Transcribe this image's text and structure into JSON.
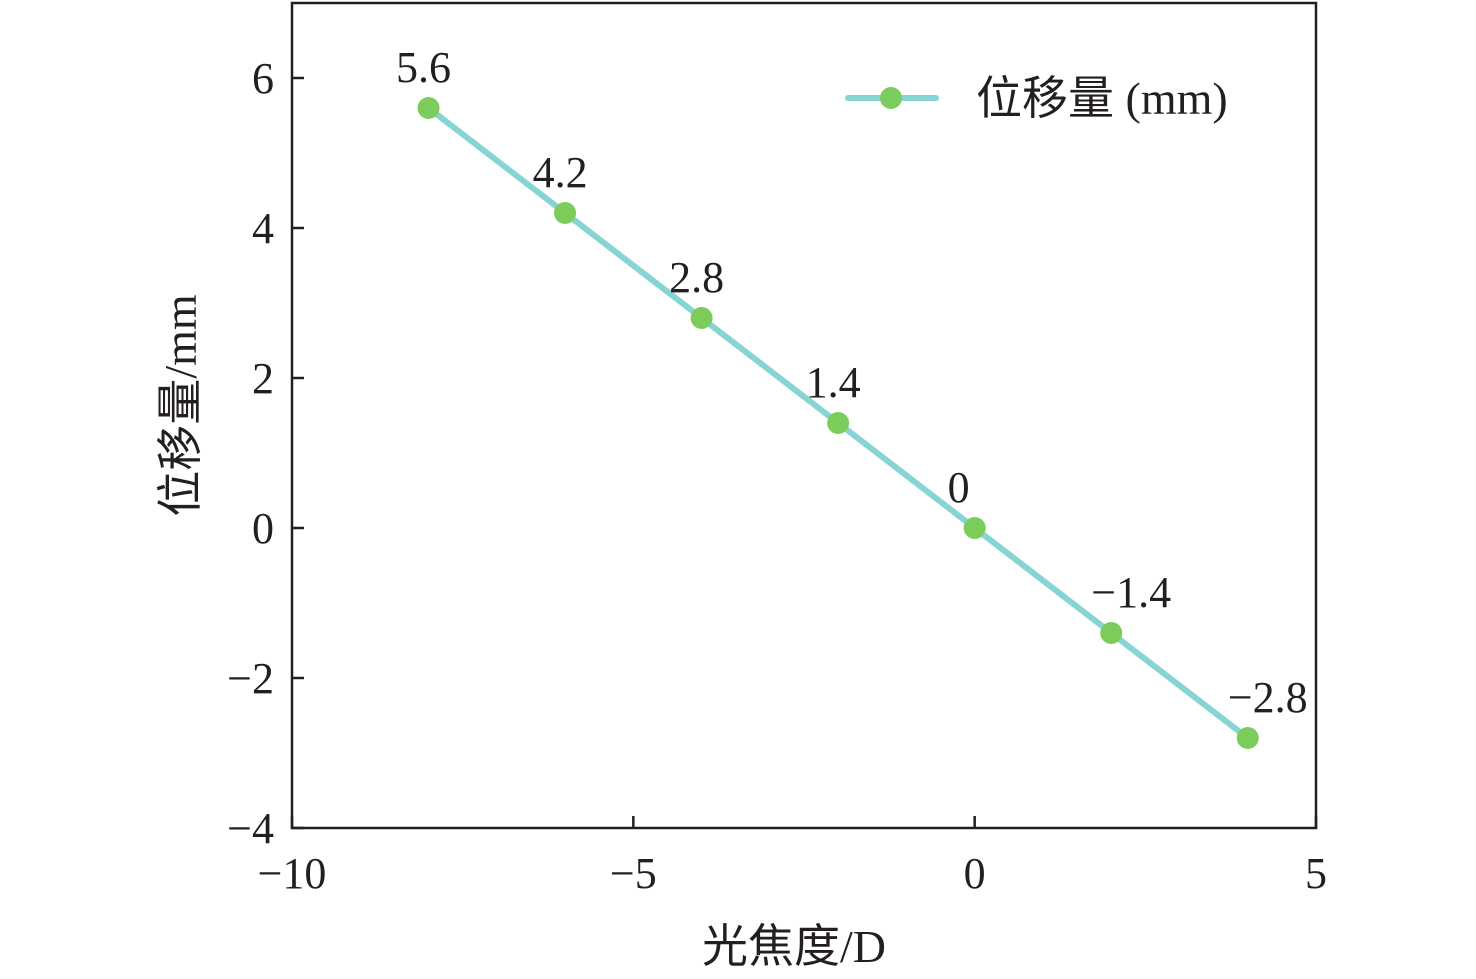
{
  "chart_data": {
    "type": "line",
    "xlabel": "光焦度/D",
    "ylabel": "位移量/mm",
    "xlim": [
      -10,
      5
    ],
    "ylim": [
      -4,
      7
    ],
    "x_ticks": [
      -10,
      -5,
      0,
      5
    ],
    "x_tick_labels": [
      "−10",
      "−5",
      "0",
      "5"
    ],
    "y_ticks": [
      -4,
      -2,
      0,
      2,
      4,
      6
    ],
    "y_tick_labels": [
      "−4",
      "−2",
      "0",
      "2",
      "4",
      "6"
    ],
    "grid": false,
    "legend_position": "top-right",
    "series": [
      {
        "name": "位移量 (mm)",
        "line_color": "#86d4d4",
        "marker_color": "#7ccc5c",
        "x": [
          -8,
          -6,
          -4,
          -2,
          0,
          2,
          4
        ],
        "y": [
          5.6,
          4.2,
          2.8,
          1.4,
          0,
          -1.4,
          -2.8
        ],
        "data_labels": [
          "5.6",
          "4.2",
          "2.8",
          "1.4",
          "0",
          "−1.4",
          "−2.8"
        ]
      }
    ]
  }
}
